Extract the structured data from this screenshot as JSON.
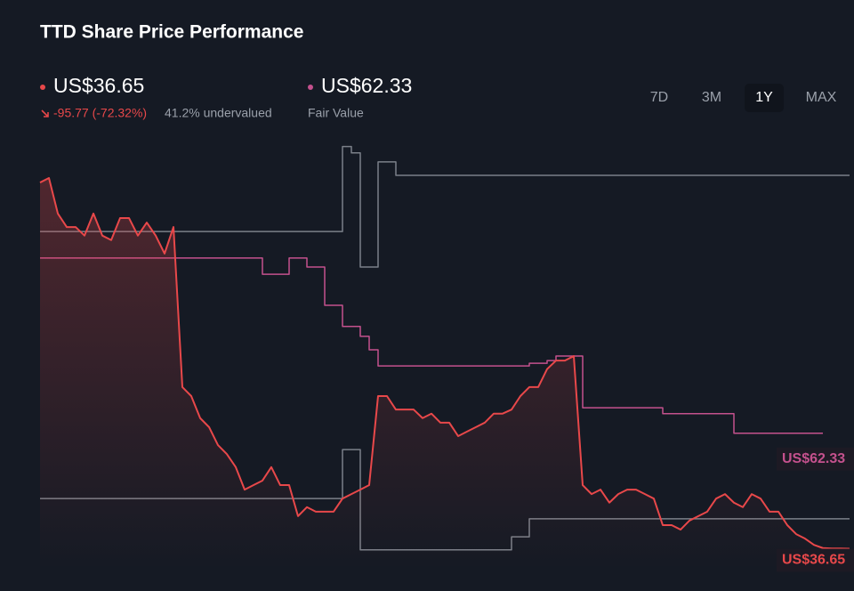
{
  "chart_data": {
    "type": "line",
    "title": "TTD Share Price Performance",
    "price_label": "US$36.65",
    "change_label": "-95.77 (-72.32%)",
    "valuation_label": "41.2% undervalued",
    "fair_value_label": "US$62.33",
    "fair_value_caption": "Fair Value",
    "ranges": [
      "7D",
      "3M",
      "1Y",
      "MAX"
    ],
    "selected_range": "1Y",
    "ylim": [
      32,
      129
    ],
    "series": [
      {
        "color": "#7b8089",
        "step": true,
        "values": [
          107.2,
          107.2,
          107.2,
          107.2,
          107.2,
          107.2,
          107.2,
          107.2,
          107.2,
          107.2,
          107.2,
          107.2,
          107.2,
          107.2,
          107.2,
          107.2,
          107.2,
          107.2,
          107.2,
          107.2,
          107.2,
          107.2,
          107.2,
          107.2,
          107.2,
          107.2,
          107.2,
          107.2,
          107.2,
          107.2,
          107.2,
          107.2,
          107.2,
          107.2,
          126.1,
          124.7,
          99.3,
          99.3,
          122.7,
          122.7,
          119.7,
          119.7,
          119.7,
          119.7,
          119.7,
          119.7,
          119.7,
          119.7,
          119.7,
          119.7,
          119.7,
          119.7,
          119.7,
          119.7,
          119.7,
          119.7,
          119.7,
          119.7,
          119.7,
          119.7,
          119.7,
          119.7,
          119.7,
          119.7,
          119.7,
          119.7,
          119.7,
          119.7,
          119.7,
          119.7,
          119.7,
          119.7,
          119.7,
          119.7,
          119.7,
          119.7,
          119.7,
          119.7,
          119.7,
          119.7,
          119.7,
          119.7,
          119.7,
          119.7,
          119.7,
          119.7,
          119.7,
          119.7,
          119.7,
          119.7,
          119.7,
          119.7
        ]
      },
      {
        "color": "#7b8089",
        "step": true,
        "values": [
          47.8,
          47.8,
          47.8,
          47.8,
          47.8,
          47.8,
          47.8,
          47.8,
          47.8,
          47.8,
          47.8,
          47.8,
          47.8,
          47.8,
          47.8,
          47.8,
          47.8,
          47.8,
          47.8,
          47.8,
          47.8,
          47.8,
          47.8,
          47.8,
          47.8,
          47.8,
          47.8,
          47.8,
          47.8,
          47.8,
          47.8,
          47.8,
          47.8,
          47.8,
          58.7,
          58.7,
          36.4,
          36.4,
          36.4,
          36.4,
          36.4,
          36.4,
          36.4,
          36.4,
          36.4,
          36.4,
          36.4,
          36.4,
          36.4,
          36.4,
          36.4,
          36.4,
          36.4,
          39.3,
          39.3,
          43.3,
          43.3,
          43.3,
          43.3,
          43.3,
          43.3,
          43.3,
          43.3,
          43.3,
          43.3,
          43.3,
          43.3,
          43.3,
          43.3,
          43.3,
          43.3,
          43.3,
          43.3,
          43.3,
          43.3,
          43.3,
          43.3,
          43.3,
          43.3,
          43.3,
          43.3,
          43.3,
          43.3,
          43.3,
          43.3,
          43.3,
          43.3,
          43.3,
          43.3,
          43.3,
          43.3,
          43.3
        ]
      },
      {
        "color": "#c4518d",
        "step": true,
        "values": [
          101.3,
          101.3,
          101.3,
          101.3,
          101.3,
          101.3,
          101.3,
          101.3,
          101.3,
          101.3,
          101.3,
          101.3,
          101.3,
          101.3,
          101.3,
          101.3,
          101.3,
          101.3,
          101.3,
          101.3,
          101.3,
          101.3,
          101.3,
          101.3,
          101.3,
          97.7,
          97.7,
          97.7,
          101.3,
          101.3,
          99.3,
          99.3,
          90.8,
          90.8,
          86.1,
          86.1,
          83.9,
          80.9,
          77.3,
          77.3,
          77.3,
          77.3,
          77.3,
          77.3,
          77.3,
          77.3,
          77.3,
          77.3,
          77.3,
          77.3,
          77.3,
          77.3,
          77.3,
          77.3,
          77.3,
          77.9,
          77.9,
          78.5,
          79.5,
          79.5,
          79.5,
          68.0,
          68.0,
          68.0,
          68.0,
          68.0,
          68.0,
          68.0,
          68.0,
          68.0,
          66.7,
          66.7,
          66.7,
          66.7,
          66.7,
          66.7,
          66.7,
          66.7,
          62.33,
          62.33,
          62.33,
          62.33,
          62.33,
          62.33,
          62.33,
          62.33,
          62.33,
          62.33,
          62.33,
          null,
          null,
          null
        ]
      },
      {
        "color": "#e8484a",
        "step": false,
        "values": [
          118.1,
          119.1,
          111.2,
          108.2,
          108.2,
          106.3,
          111.2,
          106.3,
          105.3,
          110.2,
          110.2,
          106.3,
          109.2,
          106.3,
          102.3,
          108.2,
          72.6,
          70.6,
          65.7,
          63.7,
          59.7,
          57.7,
          54.8,
          49.8,
          50.8,
          51.8,
          54.8,
          50.8,
          50.8,
          43.9,
          45.9,
          44.9,
          44.9,
          44.9,
          47.8,
          48.8,
          49.8,
          50.8,
          70.6,
          70.6,
          67.6,
          67.6,
          67.6,
          65.7,
          66.7,
          64.7,
          64.7,
          61.7,
          62.7,
          63.7,
          64.7,
          66.7,
          66.7,
          67.6,
          70.6,
          72.6,
          72.6,
          76.6,
          78.5,
          78.5,
          79.5,
          50.8,
          48.8,
          49.8,
          46.9,
          48.8,
          49.8,
          49.8,
          48.8,
          47.8,
          41.9,
          41.9,
          40.9,
          42.9,
          43.9,
          44.9,
          47.8,
          48.8,
          46.9,
          45.9,
          48.8,
          47.8,
          44.9,
          44.9,
          41.9,
          39.9,
          38.9,
          37.5,
          36.8,
          36.7,
          36.7,
          36.65
        ]
      }
    ]
  }
}
